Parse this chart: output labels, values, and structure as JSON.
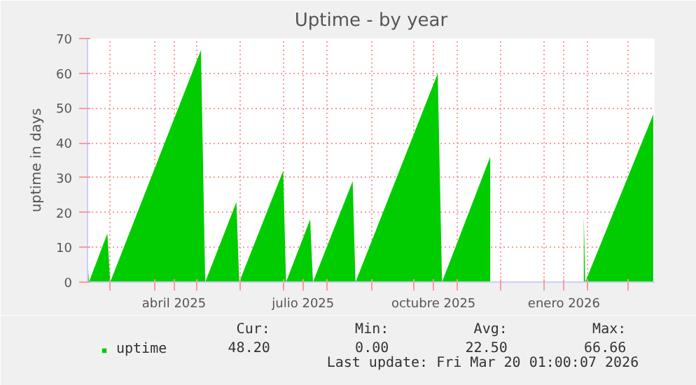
{
  "chart_data": {
    "type": "area",
    "title": "Uptime - by year",
    "ylabel": "uptime in days",
    "x": [
      "2025-02-13",
      "2025-02-14",
      "2025-02-27",
      "2025-03-01",
      "2025-05-04",
      "2025-05-07",
      "2025-05-29",
      "2025-05-31",
      "2025-07-01",
      "2025-07-03",
      "2025-07-20",
      "2025-07-22",
      "2025-08-19",
      "2025-08-21",
      "2025-10-18",
      "2025-10-21",
      "2025-11-24",
      "2025-11-25",
      "2026-01-28",
      "2026-01-29",
      "2026-01-30",
      "2026-03-19"
    ],
    "series": [
      {
        "name": "uptime",
        "color": "#00cc00",
        "values": [
          7,
          0,
          14,
          0,
          66.66,
          0,
          23,
          0,
          32,
          0,
          18,
          0,
          29,
          0,
          60,
          0,
          36,
          null,
          null,
          19,
          0,
          48.2
        ]
      }
    ],
    "xlim": [
      "2025-02-13",
      "2026-03-20"
    ],
    "xticks": [
      {
        "value": "2025-03-01",
        "label": null
      },
      {
        "value": "2025-04-01",
        "label": null
      },
      {
        "value": "2025-04-15",
        "label": "abril 2025"
      },
      {
        "value": "2025-05-01",
        "label": null
      },
      {
        "value": "2025-06-01",
        "label": null
      },
      {
        "value": "2025-07-01",
        "label": null
      },
      {
        "value": "2025-07-15",
        "label": "julio 2025"
      },
      {
        "value": "2025-08-01",
        "label": null
      },
      {
        "value": "2025-09-01",
        "label": null
      },
      {
        "value": "2025-10-01",
        "label": null
      },
      {
        "value": "2025-10-15",
        "label": "octubre 2025"
      },
      {
        "value": "2025-11-01",
        "label": null
      },
      {
        "value": "2025-12-01",
        "label": null
      },
      {
        "value": "2026-01-01",
        "label": null
      },
      {
        "value": "2026-01-15",
        "label": "enero 2026"
      },
      {
        "value": "2026-02-01",
        "label": null
      },
      {
        "value": "2026-03-01",
        "label": null
      }
    ],
    "ylim": [
      0,
      70
    ],
    "yticks": [
      0,
      10,
      20,
      30,
      40,
      50,
      60,
      70
    ],
    "grid": true,
    "legend": "bottom left",
    "annotations": [
      "Cur:",
      "48.20",
      "Min:",
      "0.00",
      "Avg:",
      "22.50",
      "Max:",
      "66.66",
      "Last update: Fri Mar 20 01:00:07 2026"
    ]
  }
}
